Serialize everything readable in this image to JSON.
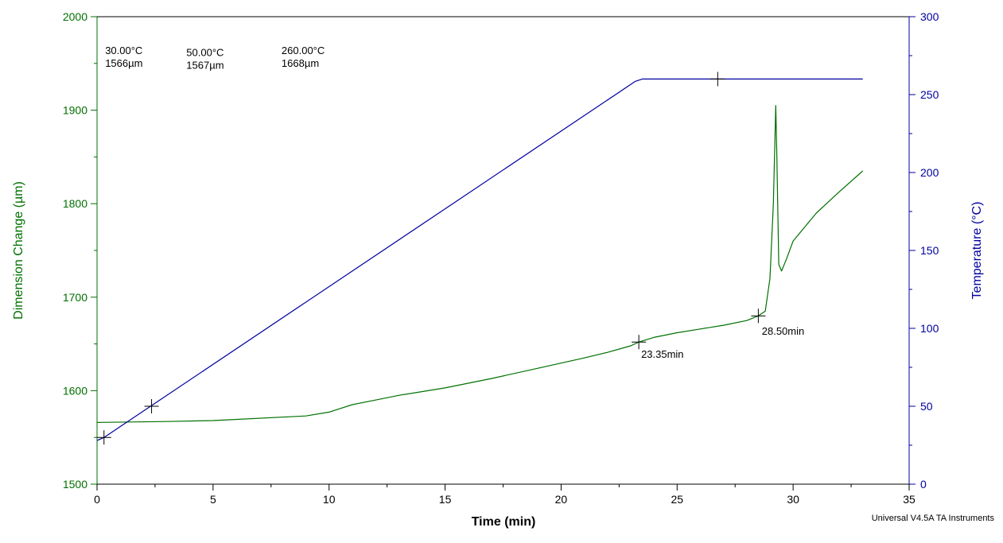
{
  "chart_data": {
    "type": "line",
    "xlabel": "Time (min)",
    "ylabel_left": "Dimension Change (µm)",
    "ylabel_right": "Temperature (°C)",
    "xlim": [
      0,
      35
    ],
    "ylim_left": [
      1500,
      2000
    ],
    "ylim_right": [
      0,
      300
    ],
    "x_ticks": [
      0,
      5,
      10,
      15,
      20,
      25,
      30,
      35
    ],
    "y_left_ticks": [
      1500,
      1600,
      1700,
      1800,
      1900,
      2000
    ],
    "y_right_ticks": [
      0,
      50,
      100,
      150,
      200,
      250,
      300
    ],
    "colors": {
      "dimension": "#007000",
      "temperature": "#0000a0",
      "axis": "#000000"
    },
    "series": [
      {
        "name": "Dimension Change",
        "axis": "left",
        "x": [
          0,
          3,
          5,
          9,
          10,
          10.5,
          11,
          12,
          13,
          15,
          17,
          19,
          21,
          22,
          23,
          23.35,
          24,
          25,
          26,
          27,
          28,
          28.5,
          28.8,
          29.0,
          29.15,
          29.25,
          29.3,
          29.38,
          29.5,
          29.7,
          30,
          31,
          32,
          33
        ],
        "y": [
          1566,
          1567,
          1568,
          1573,
          1577,
          1581,
          1585,
          1590,
          1595,
          1603,
          1613,
          1624,
          1635,
          1641,
          1648,
          1652,
          1657,
          1662,
          1666,
          1670,
          1675,
          1680,
          1685,
          1720,
          1800,
          1905,
          1850,
          1735,
          1728,
          1740,
          1760,
          1790,
          1813,
          1835
        ]
      },
      {
        "name": "Temperature",
        "axis": "right",
        "x": [
          0,
          0.3,
          23.2,
          23.5,
          24,
          26.75,
          33
        ],
        "y": [
          28,
          30,
          258.5,
          260,
          260,
          260,
          260
        ]
      }
    ],
    "markers": [
      {
        "series": "Temperature",
        "x": 0.3,
        "y": 30
      },
      {
        "series": "Temperature",
        "x": 2.35,
        "y": 50
      },
      {
        "series": "Temperature",
        "x": 26.75,
        "y": 260
      },
      {
        "series": "Dimension Change",
        "x": 23.35,
        "y": 1652
      },
      {
        "series": "Dimension Change",
        "x": 28.5,
        "y": 1680
      }
    ],
    "annotations": [
      {
        "lines": [
          "30.00°C",
          "1566µm"
        ],
        "x": 0.35,
        "y": 1960
      },
      {
        "lines": [
          "50.00°C",
          "1567µm"
        ],
        "x": 3.85,
        "y": 1958
      },
      {
        "lines": [
          "260.00°C",
          "1668µm"
        ],
        "x": 7.95,
        "y": 1960
      },
      {
        "lines": [
          "23.35min"
        ],
        "x": 23.45,
        "y": 1635
      },
      {
        "lines": [
          "28.50min"
        ],
        "x": 28.65,
        "y": 1660
      }
    ],
    "grid": false
  },
  "footer": "Universal V4.5A TA Instruments"
}
